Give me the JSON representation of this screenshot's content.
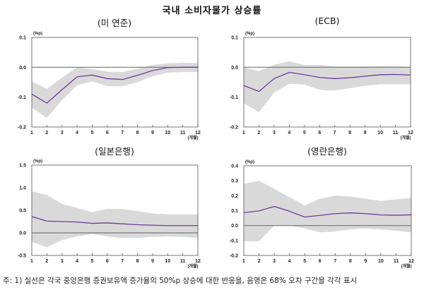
{
  "title": "국내 소비자물가 상승률",
  "footnote": "주: 1) 실선은 각국 중앙은행 증권보유액 증가율의 50%p 상승에 대한 반응을, 음영은 68% 오차 구간을 각각 표시",
  "colors": {
    "line": "#6a3d9a",
    "band": "#d9d9d9",
    "zero": "#777777",
    "axis": "#555555"
  },
  "chart_data": [
    {
      "type": "line",
      "title": "(미 연준)",
      "ylabel": "(%p)",
      "xlabel": "(개월)",
      "x": [
        1,
        2,
        3,
        4,
        5,
        6,
        7,
        8,
        9,
        10,
        11,
        12
      ],
      "ylim": [
        -0.2,
        0.1
      ],
      "yticks": [
        "0.1",
        "0.0",
        "-0.1",
        "-0.2"
      ],
      "ytick_values": [
        0.1,
        0.0,
        -0.1,
        -0.2
      ],
      "response": [
        -0.09,
        -0.12,
        -0.075,
        -0.032,
        -0.026,
        -0.038,
        -0.041,
        -0.027,
        -0.011,
        -0.001,
        0.0,
        0.0
      ],
      "upper": [
        -0.047,
        -0.072,
        -0.035,
        0.0,
        -0.006,
        -0.015,
        -0.016,
        -0.005,
        0.008,
        0.013,
        0.015,
        0.014
      ],
      "lower": [
        -0.135,
        -0.17,
        -0.11,
        -0.06,
        -0.047,
        -0.063,
        -0.064,
        -0.05,
        -0.03,
        -0.018,
        -0.016,
        -0.016
      ]
    },
    {
      "type": "line",
      "title": "(ECB)",
      "ylabel": "(%p)",
      "xlabel": "(개월)",
      "x": [
        1,
        2,
        3,
        4,
        5,
        6,
        7,
        8,
        9,
        10,
        11,
        12
      ],
      "ylim": [
        -0.2,
        0.1
      ],
      "yticks": [
        "0.1",
        "0.0",
        "-0.1",
        "-0.2"
      ],
      "ytick_values": [
        0.1,
        0.0,
        -0.1,
        -0.2
      ],
      "response": [
        -0.061,
        -0.081,
        -0.038,
        -0.017,
        -0.025,
        -0.034,
        -0.038,
        -0.035,
        -0.03,
        -0.025,
        -0.024,
        -0.026
      ],
      "upper": [
        0.0,
        -0.013,
        0.008,
        0.02,
        0.008,
        0.008,
        0.003,
        0.003,
        0.003,
        0.004,
        0.004,
        0.002
      ],
      "lower": [
        -0.12,
        -0.15,
        -0.085,
        -0.055,
        -0.058,
        -0.076,
        -0.078,
        -0.07,
        -0.062,
        -0.057,
        -0.057,
        -0.057
      ]
    },
    {
      "type": "line",
      "title": "(일본은행)",
      "ylabel": "(%p)",
      "xlabel": "(개월)",
      "x": [
        1,
        2,
        3,
        4,
        5,
        6,
        7,
        8,
        9,
        10,
        11,
        12
      ],
      "ylim": [
        -0.5,
        1.5
      ],
      "yticks": [
        "1.5",
        "1.0",
        "0.5",
        "0.0",
        "-0.5"
      ],
      "ytick_values": [
        1.5,
        1.0,
        0.5,
        0.0,
        -0.5
      ],
      "response": [
        0.36,
        0.26,
        0.25,
        0.24,
        0.21,
        0.22,
        0.2,
        0.18,
        0.17,
        0.16,
        0.16,
        0.16
      ],
      "upper": [
        0.92,
        0.84,
        0.64,
        0.55,
        0.46,
        0.53,
        0.53,
        0.48,
        0.43,
        0.41,
        0.41,
        0.41
      ],
      "lower": [
        -0.2,
        -0.32,
        -0.16,
        -0.08,
        -0.03,
        -0.08,
        -0.12,
        -0.11,
        -0.09,
        -0.08,
        -0.09,
        -0.11
      ]
    },
    {
      "type": "line",
      "title": "(영란은행)",
      "ylabel": "(%p)",
      "xlabel": "(개월)",
      "x": [
        1,
        2,
        3,
        4,
        5,
        6,
        7,
        8,
        9,
        10,
        11,
        12
      ],
      "ylim": [
        -0.2,
        0.4
      ],
      "yticks": [
        "0.4",
        "0.3",
        "0.2",
        "0.1",
        "0.0",
        "-0.1",
        "-0.2"
      ],
      "ytick_values": [
        0.4,
        0.3,
        0.2,
        0.1,
        0.0,
        -0.1,
        -0.2
      ],
      "response": [
        0.086,
        0.098,
        0.128,
        0.096,
        0.057,
        0.068,
        0.08,
        0.085,
        0.08,
        0.071,
        0.069,
        0.072
      ],
      "upper": [
        0.28,
        0.3,
        0.245,
        0.19,
        0.135,
        0.18,
        0.2,
        0.195,
        0.18,
        0.165,
        0.175,
        0.185
      ],
      "lower": [
        -0.105,
        -0.105,
        0.0,
        0.0,
        -0.02,
        -0.045,
        -0.04,
        -0.025,
        -0.02,
        -0.025,
        -0.035,
        -0.045
      ]
    }
  ]
}
